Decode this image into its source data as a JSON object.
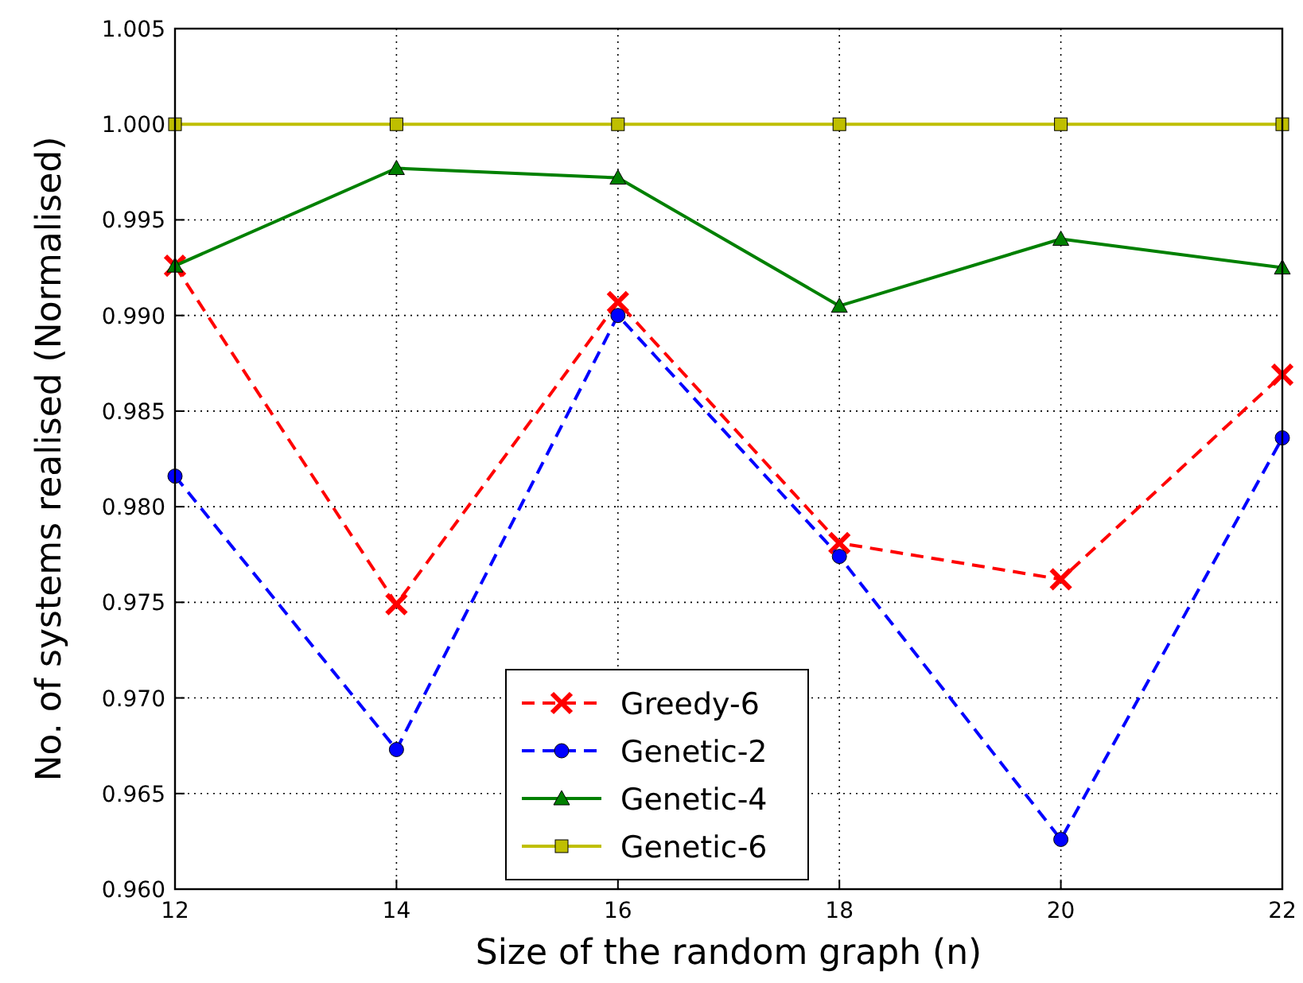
{
  "chart_data": {
    "type": "line",
    "xlabel": "Size of the random graph (n)",
    "ylabel": "No. of systems realised (Normalised)",
    "x": [
      12,
      14,
      16,
      18,
      20,
      22
    ],
    "series": [
      {
        "name": "Greedy-6",
        "color": "#ff0000",
        "marker": "cross",
        "line_style": "dashed",
        "values": [
          0.9926,
          0.9749,
          0.9907,
          0.9781,
          0.9762,
          0.9869
        ]
      },
      {
        "name": "Genetic-2",
        "color": "#0000ff",
        "marker": "circle",
        "line_style": "dashed",
        "values": [
          0.9816,
          0.9673,
          0.99,
          0.9774,
          0.9626,
          0.9836
        ]
      },
      {
        "name": "Genetic-4",
        "color": "#008000",
        "marker": "triangle",
        "line_style": "solid",
        "values": [
          0.9926,
          0.9977,
          0.9972,
          0.9905,
          0.994,
          0.9925
        ]
      },
      {
        "name": "Genetic-6",
        "color": "#bfbf00",
        "marker": "square",
        "line_style": "solid",
        "values": [
          1.0,
          1.0,
          1.0,
          1.0,
          1.0,
          1.0
        ]
      }
    ],
    "xlim": [
      12,
      22
    ],
    "xticks": [
      12,
      14,
      16,
      18,
      20,
      22
    ],
    "ylim": [
      0.96,
      1.005
    ],
    "yticks": [
      {
        "value": 0.96,
        "label": "0.960"
      },
      {
        "value": 0.965,
        "label": "0.965"
      },
      {
        "value": 0.97,
        "label": "0.970"
      },
      {
        "value": 0.975,
        "label": "0.975"
      },
      {
        "value": 0.98,
        "label": "0.980"
      },
      {
        "value": 0.985,
        "label": "0.985"
      },
      {
        "value": 0.99,
        "label": "0.990"
      },
      {
        "value": 0.995,
        "label": "0.995"
      },
      {
        "value": 1.0,
        "label": "1.000"
      },
      {
        "value": 1.005,
        "label": "1.005"
      }
    ],
    "grid": true,
    "legend": "bottom"
  }
}
